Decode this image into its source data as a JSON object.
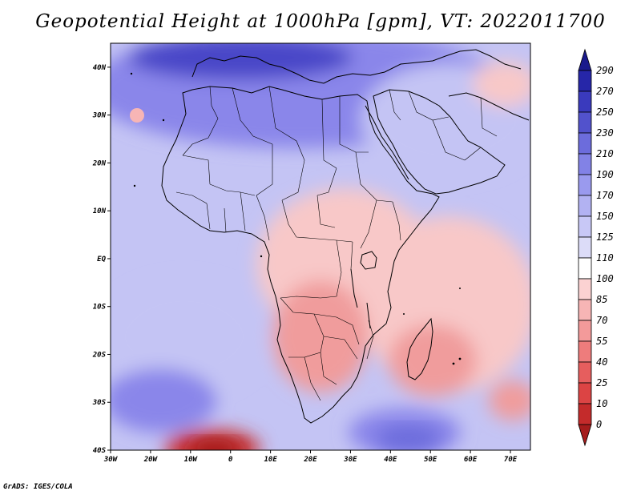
{
  "title": "Geopotential Height at 1000hPa [gpm], VT: 2022011700",
  "footer": "GrADS: IGES/COLA",
  "map": {
    "lon_range": [
      -30,
      75
    ],
    "lat_range": [
      -40,
      45
    ],
    "lon_ticks": [
      {
        "value": -30,
        "label": "30W"
      },
      {
        "value": -20,
        "label": "20W"
      },
      {
        "value": -10,
        "label": "10W"
      },
      {
        "value": 0,
        "label": "0"
      },
      {
        "value": 10,
        "label": "10E"
      },
      {
        "value": 20,
        "label": "20E"
      },
      {
        "value": 30,
        "label": "30E"
      },
      {
        "value": 40,
        "label": "40E"
      },
      {
        "value": 50,
        "label": "50E"
      },
      {
        "value": 60,
        "label": "60E"
      },
      {
        "value": 70,
        "label": "70E"
      }
    ],
    "lat_ticks": [
      {
        "value": 40,
        "label": "40N"
      },
      {
        "value": 30,
        "label": "30N"
      },
      {
        "value": 20,
        "label": "20N"
      },
      {
        "value": 10,
        "label": "10N"
      },
      {
        "value": 0,
        "label": "EQ"
      },
      {
        "value": -10,
        "label": "10S"
      },
      {
        "value": -20,
        "label": "20S"
      },
      {
        "value": -30,
        "label": "30S"
      },
      {
        "value": -40,
        "label": "40S"
      }
    ]
  },
  "colorbar": {
    "levels": [
      "0",
      "10",
      "25",
      "40",
      "55",
      "70",
      "85",
      "100",
      "110",
      "125",
      "150",
      "170",
      "190",
      "210",
      "230",
      "250",
      "270",
      "290"
    ],
    "colors": [
      "#a51c1c",
      "#c42b2b",
      "#dc4444",
      "#e65e5e",
      "#ee7c7c",
      "#f39a9a",
      "#f7b5b5",
      "#fbd2d2",
      "#ffffff",
      "#dcdcf8",
      "#c8c8f6",
      "#b2b2f2",
      "#9a9aee",
      "#8282e6",
      "#6c6cdc",
      "#5252cc",
      "#3a3abd",
      "#2626a8",
      "#1a1a8c"
    ]
  },
  "colors": {
    "blue_dark": "#4a46c8",
    "blue_mid": "#8a86ea",
    "blue_light": "#c4c4f4",
    "red_light": "#f8c8c8",
    "red_mid": "#f09c9c",
    "red_dark": "#c83232",
    "coast": "#000000"
  }
}
